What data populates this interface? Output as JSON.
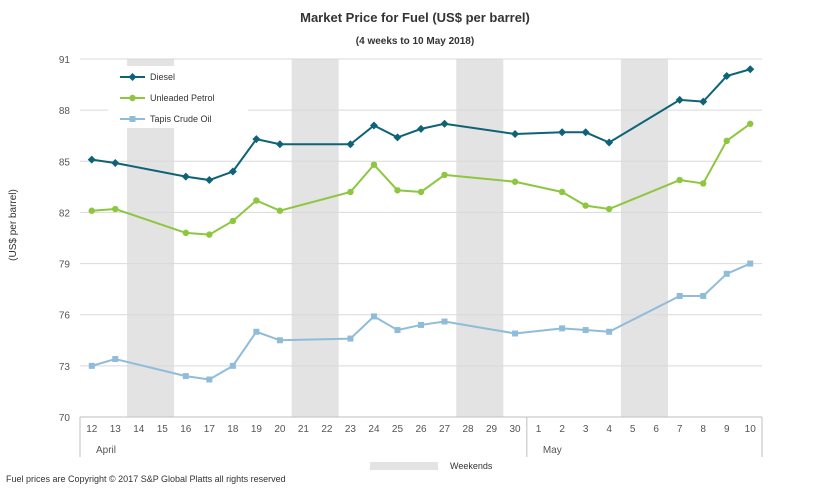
{
  "chart_data": {
    "type": "line",
    "title": "Market Price for Fuel (US$ per barrel)",
    "subtitle": "(4 weeks to 10 May 2018)",
    "ylabel": "(US$ per barrel)",
    "xlabel": "",
    "ylim": [
      70,
      91
    ],
    "yticks": [
      70,
      73,
      76,
      79,
      82,
      85,
      88,
      91
    ],
    "grid": true,
    "legend_position": "top-left",
    "day_labels": [
      "12",
      "13",
      "14",
      "15",
      "16",
      "17",
      "18",
      "19",
      "20",
      "21",
      "22",
      "23",
      "24",
      "25",
      "26",
      "27",
      "28",
      "29",
      "30",
      "1",
      "2",
      "3",
      "4",
      "5",
      "6",
      "7",
      "8",
      "9",
      "10"
    ],
    "month_labels": [
      {
        "label": "April",
        "start_index": 0
      },
      {
        "label": "May",
        "start_index": 19
      }
    ],
    "weekends": [
      [
        2,
        3
      ],
      [
        9,
        10
      ],
      [
        16,
        17
      ],
      [
        23,
        24
      ]
    ],
    "weekend_legend_label": "Weekends",
    "series": [
      {
        "name": "Diesel",
        "color": "#0e6377",
        "marker": "diamond",
        "points": [
          [
            0,
            85.1
          ],
          [
            1,
            84.9
          ],
          [
            4,
            84.1
          ],
          [
            5,
            83.9
          ],
          [
            6,
            84.4
          ],
          [
            7,
            86.3
          ],
          [
            8,
            86.0
          ],
          [
            11,
            86.0
          ],
          [
            12,
            87.1
          ],
          [
            13,
            86.4
          ],
          [
            14,
            86.9
          ],
          [
            15,
            87.2
          ],
          [
            18,
            86.6
          ],
          [
            20,
            86.7
          ],
          [
            21,
            86.7
          ],
          [
            22,
            86.1
          ],
          [
            25,
            88.6
          ],
          [
            26,
            88.5
          ],
          [
            27,
            90.0
          ],
          [
            28,
            90.4
          ]
        ]
      },
      {
        "name": "Unleaded Petrol",
        "color": "#8dc63f",
        "marker": "circle",
        "points": [
          [
            0,
            82.1
          ],
          [
            1,
            82.2
          ],
          [
            4,
            80.8
          ],
          [
            5,
            80.7
          ],
          [
            6,
            81.5
          ],
          [
            7,
            82.7
          ],
          [
            8,
            82.1
          ],
          [
            11,
            83.2
          ],
          [
            12,
            84.8
          ],
          [
            13,
            83.3
          ],
          [
            14,
            83.2
          ],
          [
            15,
            84.2
          ],
          [
            18,
            83.8
          ],
          [
            20,
            83.2
          ],
          [
            21,
            82.4
          ],
          [
            22,
            82.2
          ],
          [
            25,
            83.9
          ],
          [
            26,
            83.7
          ],
          [
            27,
            86.2
          ],
          [
            28,
            87.2
          ]
        ]
      },
      {
        "name": "Tapis Crude Oil",
        "color": "#8fbcd9",
        "marker": "square",
        "points": [
          [
            0,
            73.0
          ],
          [
            1,
            73.4
          ],
          [
            4,
            72.4
          ],
          [
            5,
            72.2
          ],
          [
            6,
            73.0
          ],
          [
            7,
            75.0
          ],
          [
            8,
            74.5
          ],
          [
            11,
            74.6
          ],
          [
            12,
            75.9
          ],
          [
            13,
            75.1
          ],
          [
            14,
            75.4
          ],
          [
            15,
            75.6
          ],
          [
            18,
            74.9
          ],
          [
            20,
            75.2
          ],
          [
            21,
            75.1
          ],
          [
            22,
            75.0
          ],
          [
            25,
            77.1
          ],
          [
            26,
            77.1
          ],
          [
            27,
            78.4
          ],
          [
            28,
            79.0
          ]
        ]
      }
    ],
    "footer": "Fuel prices are Copyright © 2017 S&P Global Platts all rights reserved"
  }
}
